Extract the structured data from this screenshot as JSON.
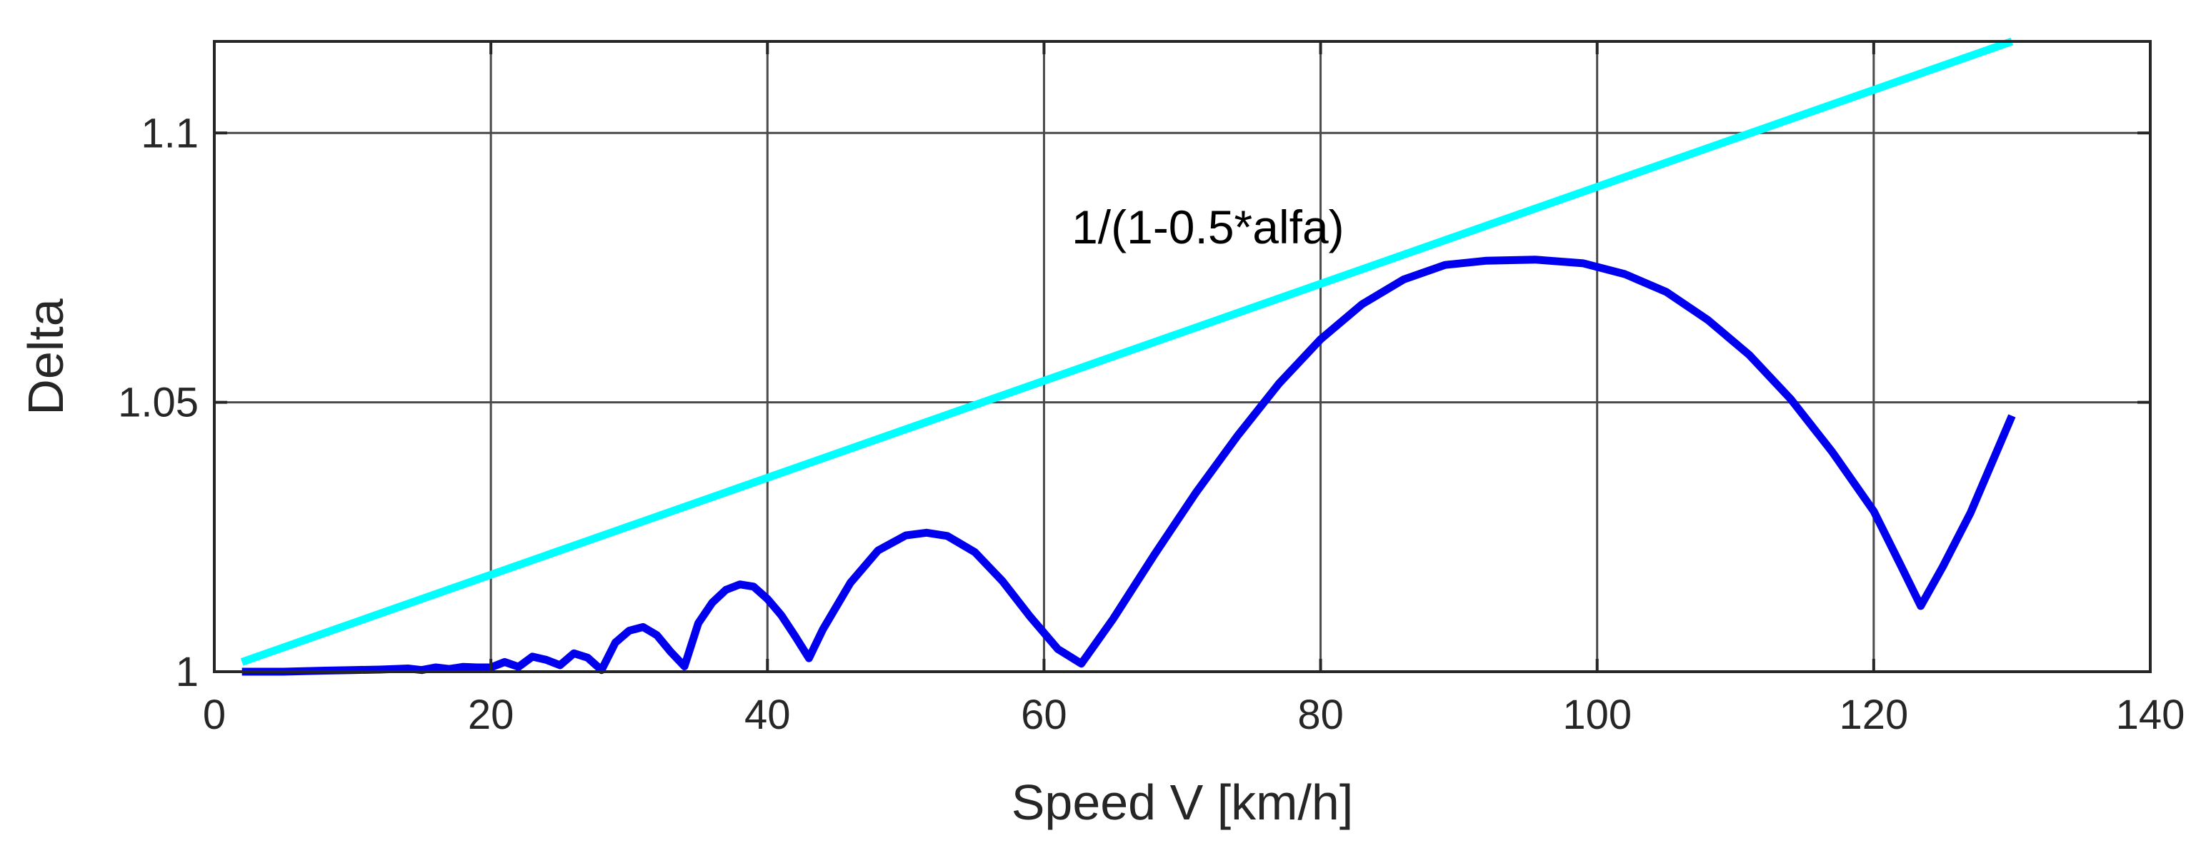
{
  "chart_data": {
    "type": "line",
    "title": "",
    "xlabel": "Speed  V   [km/h]",
    "ylabel": "Delta",
    "xlim": [
      0,
      140
    ],
    "ylim": [
      1.0,
      1.117
    ],
    "xticks": [
      0,
      20,
      40,
      60,
      80,
      100,
      120,
      140
    ],
    "xtick_labels": [
      "0",
      "20",
      "40",
      "60",
      "80",
      "100",
      "120",
      "140"
    ],
    "yticks": [
      1.0,
      1.05,
      1.1
    ],
    "ytick_labels": [
      "1",
      "1.05",
      "1.1"
    ],
    "grid": true,
    "annotations": [
      {
        "text": "1/(1-0.5*alfa)",
        "x": 62,
        "y": 1.0795
      }
    ],
    "series": [
      {
        "name": "1/(1-0.5*alfa)",
        "color": "#00FFFF",
        "x": [
          2,
          130
        ],
        "y": [
          1.0018,
          1.117
        ]
      },
      {
        "name": "Delta",
        "color": "#0000EE",
        "x": [
          2,
          5,
          8,
          10,
          12,
          14,
          15,
          16,
          17,
          18,
          19,
          20,
          21,
          22,
          23,
          24,
          25,
          26,
          27,
          28,
          29,
          30,
          31,
          32,
          33,
          34,
          35,
          36,
          37,
          38,
          39,
          40,
          41,
          42,
          43,
          44,
          46,
          48,
          50,
          51.5,
          53,
          55,
          57,
          59,
          61,
          62.7,
          65,
          68,
          71,
          74,
          77,
          80,
          83,
          86,
          89,
          92,
          95.5,
          99,
          102,
          105,
          108,
          111,
          114,
          117,
          120,
          122,
          123.4,
          125,
          127,
          130
        ],
        "y": [
          1.0,
          1.0,
          1.0002,
          1.0003,
          1.0004,
          1.0006,
          1.0003,
          1.0008,
          1.0005,
          1.0009,
          1.0008,
          1.0008,
          1.0018,
          1.0009,
          1.0028,
          1.0022,
          1.0012,
          1.0034,
          1.0026,
          1.0003,
          1.0054,
          1.0076,
          1.0083,
          1.0068,
          1.0037,
          1.001,
          1.009,
          1.0128,
          1.0152,
          1.0162,
          1.0158,
          1.0135,
          1.0105,
          1.0066,
          1.0025,
          1.0078,
          1.0165,
          1.0225,
          1.0253,
          1.0258,
          1.0252,
          1.0222,
          1.0168,
          1.0102,
          1.0042,
          1.0015,
          1.0098,
          1.0218,
          1.0333,
          1.0438,
          1.0535,
          1.0617,
          1.0682,
          1.0728,
          1.0755,
          1.0763,
          1.0765,
          1.0758,
          1.0738,
          1.0705,
          1.0653,
          1.0588,
          1.0506,
          1.0408,
          1.0298,
          1.0195,
          1.0122,
          1.0195,
          1.0295,
          1.0475
        ]
      }
    ]
  }
}
